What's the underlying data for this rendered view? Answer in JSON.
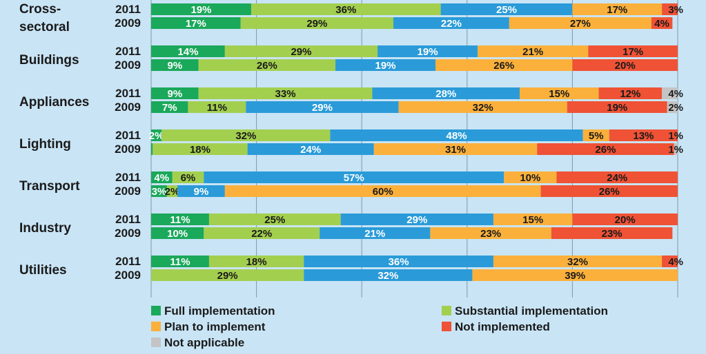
{
  "chart_data": {
    "type": "stacked-bar-horizontal",
    "title": "",
    "categories_legend": [
      {
        "key": "full",
        "name": "Full implementation",
        "color": "#1aa85a"
      },
      {
        "key": "substantial",
        "name": "Substantial implementation",
        "color": "#a3cf4f"
      },
      {
        "key": "plan",
        "name": "Plan to implement",
        "color": "#fbb03b"
      },
      {
        "key": "not",
        "name": "Not implemented",
        "color": "#ef5235"
      },
      {
        "key": "na",
        "name": "Not applicable",
        "color": "#c4c4c4"
      }
    ],
    "segment_colors": {
      "full": "#1aa85a",
      "substantial": "#a3cf4f",
      "in_progress": "#2a9bd8",
      "plan": "#fbb03b",
      "not": "#ef5235",
      "na": "#c4c4c4"
    },
    "label_colors": {
      "full": "#ffffff",
      "substantial": "#1a1a1a",
      "in_progress": "#ffffff",
      "plan": "#1a1a1a",
      "not": "#1a1a1a",
      "na": "#1a1a1a"
    },
    "xlim": [
      0,
      100
    ],
    "grid": true,
    "sectors": [
      {
        "name": [
          "Cross-",
          "sectoral"
        ],
        "rows": [
          {
            "year": "2011",
            "segments": [
              {
                "key": "full",
                "value": 19,
                "label": "19%"
              },
              {
                "key": "substantial",
                "value": 36,
                "label": "36%"
              },
              {
                "key": "in_progress",
                "value": 25,
                "label": "25%"
              },
              {
                "key": "plan",
                "value": 17,
                "label": "17%"
              },
              {
                "key": "not",
                "value": 3,
                "label": "3%"
              }
            ]
          },
          {
            "year": "2009",
            "segments": [
              {
                "key": "full",
                "value": 17,
                "label": "17%"
              },
              {
                "key": "substantial",
                "value": 29,
                "label": "29%"
              },
              {
                "key": "in_progress",
                "value": 22,
                "label": "22%"
              },
              {
                "key": "plan",
                "value": 27,
                "label": "27%"
              },
              {
                "key": "not",
                "value": 4,
                "label": "4%"
              }
            ]
          }
        ]
      },
      {
        "name": [
          "Buildings"
        ],
        "rows": [
          {
            "year": "2011",
            "segments": [
              {
                "key": "full",
                "value": 14,
                "label": "14%"
              },
              {
                "key": "substantial",
                "value": 29,
                "label": "29%"
              },
              {
                "key": "in_progress",
                "value": 19,
                "label": "19%"
              },
              {
                "key": "plan",
                "value": 21,
                "label": "21%"
              },
              {
                "key": "not",
                "value": 17,
                "label": "17%"
              },
              {
                "key": "na",
                "value": 0.5,
                "label": ""
              }
            ]
          },
          {
            "year": "2009",
            "segments": [
              {
                "key": "full",
                "value": 9,
                "label": "9%"
              },
              {
                "key": "substantial",
                "value": 26,
                "label": "26%"
              },
              {
                "key": "in_progress",
                "value": 19,
                "label": "19%"
              },
              {
                "key": "plan",
                "value": 26,
                "label": "26%"
              },
              {
                "key": "not",
                "value": 20,
                "label": "20%"
              }
            ]
          }
        ]
      },
      {
        "name": [
          "Appliances"
        ],
        "rows": [
          {
            "year": "2011",
            "segments": [
              {
                "key": "full",
                "value": 9,
                "label": "9%"
              },
              {
                "key": "substantial",
                "value": 33,
                "label": "33%"
              },
              {
                "key": "in_progress",
                "value": 28,
                "label": "28%"
              },
              {
                "key": "plan",
                "value": 15,
                "label": "15%"
              },
              {
                "key": "not",
                "value": 12,
                "label": "12%"
              },
              {
                "key": "na",
                "value": 4,
                "label": "4%"
              }
            ]
          },
          {
            "year": "2009",
            "segments": [
              {
                "key": "full",
                "value": 7,
                "label": "7%"
              },
              {
                "key": "substantial",
                "value": 11,
                "label": "11%"
              },
              {
                "key": "in_progress",
                "value": 29,
                "label": "29%"
              },
              {
                "key": "plan",
                "value": 32,
                "label": "32%"
              },
              {
                "key": "not",
                "value": 19,
                "label": "19%"
              },
              {
                "key": "na",
                "value": 2,
                "label": "2%"
              }
            ]
          }
        ]
      },
      {
        "name": [
          "Lighting"
        ],
        "rows": [
          {
            "year": "2011",
            "segments": [
              {
                "key": "full",
                "value": 2,
                "label": "2%"
              },
              {
                "key": "substantial",
                "value": 32,
                "label": "32%"
              },
              {
                "key": "in_progress",
                "value": 48,
                "label": "48%"
              },
              {
                "key": "plan",
                "value": 5,
                "label": "5%"
              },
              {
                "key": "not",
                "value": 13,
                "label": "13%"
              },
              {
                "key": "na",
                "value": 1,
                "label": "1%"
              }
            ]
          },
          {
            "year": "2009",
            "segments": [
              {
                "key": "full",
                "value": 0.3,
                "label": ""
              },
              {
                "key": "substantial",
                "value": 18,
                "label": "18%"
              },
              {
                "key": "in_progress",
                "value": 24,
                "label": "24%"
              },
              {
                "key": "plan",
                "value": 31,
                "label": "31%"
              },
              {
                "key": "not",
                "value": 26,
                "label": "26%"
              },
              {
                "key": "na",
                "value": 1,
                "label": "1%"
              }
            ]
          }
        ]
      },
      {
        "name": [
          "Transport"
        ],
        "rows": [
          {
            "year": "2011",
            "segments": [
              {
                "key": "full",
                "value": 4,
                "label": "4%"
              },
              {
                "key": "substantial",
                "value": 6,
                "label": "6%"
              },
              {
                "key": "in_progress",
                "value": 57,
                "label": "57%"
              },
              {
                "key": "plan",
                "value": 10,
                "label": "10%"
              },
              {
                "key": "not",
                "value": 24,
                "label": "24%"
              }
            ]
          },
          {
            "year": "2009",
            "segments": [
              {
                "key": "full",
                "value": 3,
                "label": "3%"
              },
              {
                "key": "substantial",
                "value": 2,
                "label": "2%"
              },
              {
                "key": "in_progress",
                "value": 9,
                "label": "9%"
              },
              {
                "key": "plan",
                "value": 60,
                "label": "60%"
              },
              {
                "key": "not",
                "value": 26,
                "label": "26%"
              }
            ]
          }
        ]
      },
      {
        "name": [
          "Industry"
        ],
        "rows": [
          {
            "year": "2011",
            "segments": [
              {
                "key": "full",
                "value": 11,
                "label": "11%"
              },
              {
                "key": "substantial",
                "value": 25,
                "label": "25%"
              },
              {
                "key": "in_progress",
                "value": 29,
                "label": "29%"
              },
              {
                "key": "plan",
                "value": 15,
                "label": "15%"
              },
              {
                "key": "not",
                "value": 20,
                "label": "20%"
              }
            ]
          },
          {
            "year": "2009",
            "segments": [
              {
                "key": "full",
                "value": 10,
                "label": "10%"
              },
              {
                "key": "substantial",
                "value": 22,
                "label": "22%"
              },
              {
                "key": "in_progress",
                "value": 21,
                "label": "21%"
              },
              {
                "key": "plan",
                "value": 23,
                "label": "23%"
              },
              {
                "key": "not",
                "value": 23,
                "label": "23%"
              }
            ]
          }
        ]
      },
      {
        "name": [
          "Utilities"
        ],
        "rows": [
          {
            "year": "2011",
            "segments": [
              {
                "key": "full",
                "value": 11,
                "label": "11%"
              },
              {
                "key": "substantial",
                "value": 18,
                "label": "18%"
              },
              {
                "key": "in_progress",
                "value": 36,
                "label": "36%"
              },
              {
                "key": "plan",
                "value": 32,
                "label": "32%"
              },
              {
                "key": "not",
                "value": 4,
                "label": "4%"
              }
            ]
          },
          {
            "year": "2009",
            "segments": [
              {
                "key": "substantial",
                "value": 29,
                "label": "29%"
              },
              {
                "key": "in_progress",
                "value": 32,
                "label": "32%"
              },
              {
                "key": "plan",
                "value": 39,
                "label": "39%"
              }
            ]
          }
        ]
      }
    ]
  }
}
